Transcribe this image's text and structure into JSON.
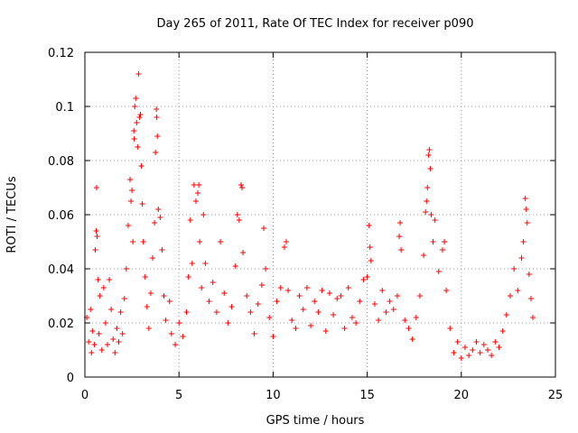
{
  "chart_data": {
    "type": "scatter",
    "title": "Day 265 of 2011, Rate Of TEC Index for receiver p090",
    "xlabel": "GPS time / hours",
    "ylabel": "ROTI / TECUs",
    "xlim": [
      0,
      25
    ],
    "ylim": [
      0,
      0.12
    ],
    "x_ticks": [
      "0",
      "5",
      "10",
      "15",
      "20",
      "25"
    ],
    "y_ticks": [
      "0",
      "0.02",
      "0.04",
      "0.06",
      "0.08",
      "0.1",
      "0.12"
    ],
    "grid": true,
    "legend": "none",
    "marker": "plus",
    "color": "#ff0000",
    "series": [
      {
        "points": [
          [
            0.1,
            0.022
          ],
          [
            0.2,
            0.013
          ],
          [
            0.3,
            0.025
          ],
          [
            0.35,
            0.009
          ],
          [
            0.4,
            0.017
          ],
          [
            0.5,
            0.012
          ],
          [
            0.55,
            0.047
          ],
          [
            0.6,
            0.054
          ],
          [
            0.62,
            0.07
          ],
          [
            0.65,
            0.052
          ],
          [
            0.7,
            0.036
          ],
          [
            0.75,
            0.016
          ],
          [
            0.8,
            0.03
          ],
          [
            0.9,
            0.01
          ],
          [
            1.0,
            0.033
          ],
          [
            1.1,
            0.02
          ],
          [
            1.2,
            0.012
          ],
          [
            1.3,
            0.036
          ],
          [
            1.4,
            0.025
          ],
          [
            1.5,
            0.014
          ],
          [
            1.6,
            0.009
          ],
          [
            1.7,
            0.018
          ],
          [
            1.8,
            0.013
          ],
          [
            1.9,
            0.024
          ],
          [
            2.0,
            0.016
          ],
          [
            2.1,
            0.029
          ],
          [
            2.2,
            0.04
          ],
          [
            2.3,
            0.056
          ],
          [
            2.4,
            0.073
          ],
          [
            2.45,
            0.065
          ],
          [
            2.5,
            0.069
          ],
          [
            2.55,
            0.05
          ],
          [
            2.6,
            0.091
          ],
          [
            2.62,
            0.088
          ],
          [
            2.65,
            0.1
          ],
          [
            2.7,
            0.103
          ],
          [
            2.75,
            0.094
          ],
          [
            2.8,
            0.085
          ],
          [
            2.85,
            0.112
          ],
          [
            2.9,
            0.096
          ],
          [
            2.95,
            0.097
          ],
          [
            3.0,
            0.078
          ],
          [
            3.05,
            0.064
          ],
          [
            3.1,
            0.05
          ],
          [
            3.2,
            0.037
          ],
          [
            3.3,
            0.026
          ],
          [
            3.4,
            0.018
          ],
          [
            3.5,
            0.031
          ],
          [
            3.6,
            0.044
          ],
          [
            3.7,
            0.057
          ],
          [
            3.75,
            0.083
          ],
          [
            3.8,
            0.099
          ],
          [
            3.82,
            0.096
          ],
          [
            3.85,
            0.089
          ],
          [
            3.9,
            0.062
          ],
          [
            4.0,
            0.059
          ],
          [
            4.1,
            0.047
          ],
          [
            4.2,
            0.03
          ],
          [
            4.3,
            0.021
          ],
          [
            4.5,
            0.028
          ],
          [
            4.6,
            0.016
          ],
          [
            4.8,
            0.012
          ],
          [
            5.0,
            0.02
          ],
          [
            5.2,
            0.015
          ],
          [
            5.4,
            0.024
          ],
          [
            5.5,
            0.037
          ],
          [
            5.6,
            0.058
          ],
          [
            5.7,
            0.042
          ],
          [
            5.8,
            0.071
          ],
          [
            5.9,
            0.065
          ],
          [
            6.0,
            0.068
          ],
          [
            6.05,
            0.071
          ],
          [
            6.1,
            0.05
          ],
          [
            6.2,
            0.033
          ],
          [
            6.3,
            0.06
          ],
          [
            6.4,
            0.042
          ],
          [
            6.6,
            0.028
          ],
          [
            6.8,
            0.035
          ],
          [
            7.0,
            0.024
          ],
          [
            7.2,
            0.05
          ],
          [
            7.4,
            0.031
          ],
          [
            7.6,
            0.02
          ],
          [
            7.8,
            0.026
          ],
          [
            8.0,
            0.041
          ],
          [
            8.1,
            0.06
          ],
          [
            8.2,
            0.058
          ],
          [
            8.3,
            0.071
          ],
          [
            8.35,
            0.07
          ],
          [
            8.4,
            0.046
          ],
          [
            8.6,
            0.03
          ],
          [
            8.8,
            0.024
          ],
          [
            9.0,
            0.016
          ],
          [
            9.2,
            0.027
          ],
          [
            9.4,
            0.034
          ],
          [
            9.5,
            0.055
          ],
          [
            9.6,
            0.04
          ],
          [
            9.8,
            0.022
          ],
          [
            10.0,
            0.015
          ],
          [
            10.2,
            0.028
          ],
          [
            10.4,
            0.033
          ],
          [
            10.6,
            0.048
          ],
          [
            10.7,
            0.05
          ],
          [
            10.8,
            0.032
          ],
          [
            11.0,
            0.021
          ],
          [
            11.2,
            0.018
          ],
          [
            11.4,
            0.03
          ],
          [
            11.6,
            0.025
          ],
          [
            11.8,
            0.033
          ],
          [
            12.0,
            0.019
          ],
          [
            12.2,
            0.028
          ],
          [
            12.4,
            0.024
          ],
          [
            12.6,
            0.032
          ],
          [
            12.8,
            0.017
          ],
          [
            13.0,
            0.031
          ],
          [
            13.2,
            0.023
          ],
          [
            13.4,
            0.029
          ],
          [
            13.6,
            0.03
          ],
          [
            13.8,
            0.018
          ],
          [
            14.0,
            0.033
          ],
          [
            14.2,
            0.022
          ],
          [
            14.4,
            0.02
          ],
          [
            14.6,
            0.028
          ],
          [
            14.8,
            0.036
          ],
          [
            15.0,
            0.037
          ],
          [
            15.1,
            0.056
          ],
          [
            15.15,
            0.048
          ],
          [
            15.2,
            0.043
          ],
          [
            15.4,
            0.027
          ],
          [
            15.6,
            0.021
          ],
          [
            15.8,
            0.032
          ],
          [
            16.0,
            0.024
          ],
          [
            16.2,
            0.028
          ],
          [
            16.4,
            0.025
          ],
          [
            16.6,
            0.03
          ],
          [
            16.7,
            0.052
          ],
          [
            16.75,
            0.057
          ],
          [
            16.8,
            0.047
          ],
          [
            17.0,
            0.021
          ],
          [
            17.2,
            0.018
          ],
          [
            17.4,
            0.014
          ],
          [
            17.6,
            0.022
          ],
          [
            17.8,
            0.03
          ],
          [
            18.0,
            0.045
          ],
          [
            18.1,
            0.061
          ],
          [
            18.15,
            0.065
          ],
          [
            18.2,
            0.07
          ],
          [
            18.25,
            0.082
          ],
          [
            18.3,
            0.084
          ],
          [
            18.35,
            0.077
          ],
          [
            18.4,
            0.06
          ],
          [
            18.5,
            0.05
          ],
          [
            18.6,
            0.058
          ],
          [
            18.8,
            0.039
          ],
          [
            19.0,
            0.047
          ],
          [
            19.1,
            0.05
          ],
          [
            19.2,
            0.032
          ],
          [
            19.4,
            0.018
          ],
          [
            19.6,
            0.009
          ],
          [
            19.8,
            0.013
          ],
          [
            20.0,
            0.007
          ],
          [
            20.2,
            0.011
          ],
          [
            20.4,
            0.008
          ],
          [
            20.6,
            0.01
          ],
          [
            20.8,
            0.013
          ],
          [
            21.0,
            0.009
          ],
          [
            21.2,
            0.012
          ],
          [
            21.4,
            0.01
          ],
          [
            21.6,
            0.008
          ],
          [
            21.8,
            0.013
          ],
          [
            22.0,
            0.011
          ],
          [
            22.2,
            0.017
          ],
          [
            22.4,
            0.023
          ],
          [
            22.6,
            0.03
          ],
          [
            22.8,
            0.04
          ],
          [
            23.0,
            0.032
          ],
          [
            23.2,
            0.044
          ],
          [
            23.3,
            0.05
          ],
          [
            23.4,
            0.066
          ],
          [
            23.45,
            0.062
          ],
          [
            23.5,
            0.057
          ],
          [
            23.6,
            0.038
          ],
          [
            23.7,
            0.029
          ],
          [
            23.8,
            0.022
          ]
        ]
      }
    ]
  }
}
